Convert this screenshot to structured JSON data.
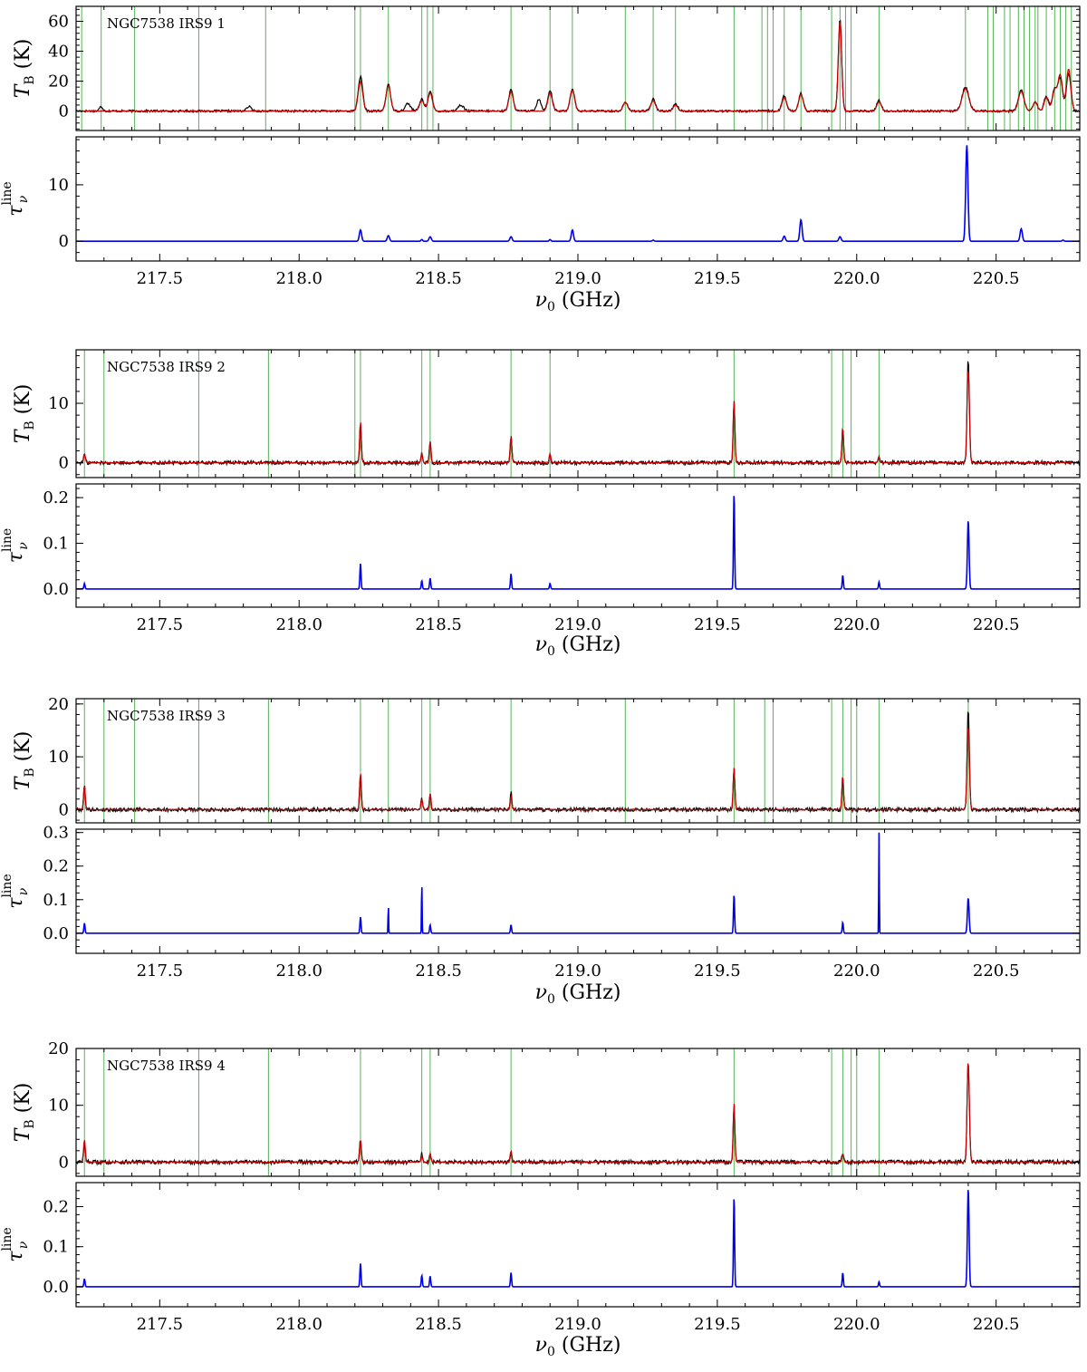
{
  "figure": {
    "xlabel_symbol": "ν",
    "xlabel_sub": "0",
    "xlabel_unit": "(GHz)",
    "xlim": [
      217.2,
      220.8
    ],
    "xticks": [
      217.5,
      218.0,
      218.5,
      219.0,
      219.5,
      220.0,
      220.5
    ],
    "xtick_labels": [
      "217.5",
      "218.0",
      "218.5",
      "219.0",
      "219.5",
      "220.0",
      "220.5"
    ],
    "top_ylabel": {
      "symbol": "T",
      "sub": "B",
      "unit": "(K)"
    },
    "bottom_ylabel": {
      "symbol": "τ",
      "sub": "ν",
      "sup": "line"
    },
    "colors": {
      "observed": "#000000",
      "model": "#cc0000",
      "tau": "#0000ee",
      "marker": "#2ca02c"
    }
  },
  "chart_data": [
    {
      "type": "line",
      "name_label": "NGC7538 IRS9 1",
      "top_ylim": [
        -13,
        70
      ],
      "top_yticks": [
        0,
        20,
        40,
        60
      ],
      "top_ytick_labels": [
        "0",
        "20",
        "40",
        "60"
      ],
      "bottom_ylim": [
        -3.5,
        18.5
      ],
      "bottom_yticks": [
        0,
        10
      ],
      "bottom_ytick_labels": [
        "0",
        "10"
      ],
      "markers": [
        217.22,
        217.29,
        217.41,
        217.64,
        217.88,
        218.2,
        218.22,
        218.32,
        218.44,
        218.46,
        218.48,
        218.76,
        218.9,
        218.98,
        219.17,
        219.27,
        219.35,
        219.56,
        219.66,
        219.68,
        219.7,
        219.74,
        219.8,
        219.91,
        219.94,
        219.96,
        219.98,
        220.08,
        220.39,
        220.47,
        220.49,
        220.53,
        220.55,
        220.58,
        220.6,
        220.62,
        220.64,
        220.65,
        220.68,
        220.71,
        220.73,
        220.75,
        220.77
      ],
      "obs_peaks": [
        [
          217.29,
          3,
          0.006
        ],
        [
          217.82,
          3,
          0.008
        ],
        [
          218.22,
          23,
          0.008
        ],
        [
          218.32,
          18,
          0.008
        ],
        [
          218.39,
          5,
          0.01
        ],
        [
          218.44,
          8,
          0.008
        ],
        [
          218.47,
          13,
          0.008
        ],
        [
          218.58,
          4,
          0.01
        ],
        [
          218.76,
          14,
          0.008
        ],
        [
          218.86,
          8,
          0.008
        ],
        [
          218.9,
          14,
          0.008
        ],
        [
          218.98,
          15,
          0.008
        ],
        [
          219.17,
          6,
          0.008
        ],
        [
          219.27,
          8,
          0.008
        ],
        [
          219.35,
          5,
          0.008
        ],
        [
          219.74,
          10,
          0.008
        ],
        [
          219.8,
          12,
          0.008
        ],
        [
          219.94,
          62,
          0.006
        ],
        [
          220.08,
          7,
          0.008
        ],
        [
          220.39,
          16,
          0.012
        ],
        [
          220.59,
          14,
          0.01
        ],
        [
          220.64,
          6,
          0.008
        ],
        [
          220.68,
          10,
          0.008
        ],
        [
          220.71,
          15,
          0.008
        ],
        [
          220.73,
          22,
          0.008
        ],
        [
          220.76,
          25,
          0.008
        ]
      ],
      "model_peaks": [
        [
          218.22,
          20,
          0.008
        ],
        [
          218.32,
          17,
          0.008
        ],
        [
          218.44,
          7,
          0.008
        ],
        [
          218.47,
          12,
          0.008
        ],
        [
          218.76,
          13,
          0.008
        ],
        [
          218.9,
          12,
          0.008
        ],
        [
          218.98,
          14,
          0.008
        ],
        [
          219.17,
          6,
          0.008
        ],
        [
          219.27,
          7,
          0.008
        ],
        [
          219.35,
          4,
          0.008
        ],
        [
          219.74,
          9,
          0.008
        ],
        [
          219.8,
          11,
          0.008
        ],
        [
          219.94,
          60,
          0.006
        ],
        [
          220.08,
          6,
          0.008
        ],
        [
          220.39,
          15,
          0.012
        ],
        [
          220.59,
          13,
          0.01
        ],
        [
          220.64,
          6,
          0.008
        ],
        [
          220.68,
          9,
          0.008
        ],
        [
          220.71,
          14,
          0.008
        ],
        [
          220.73,
          24,
          0.008
        ],
        [
          220.76,
          28,
          0.008
        ]
      ],
      "noise": 0.7,
      "tau_peaks": [
        [
          218.22,
          2.0,
          0.004
        ],
        [
          218.32,
          1.0,
          0.004
        ],
        [
          218.44,
          0.3,
          0.003
        ],
        [
          218.47,
          0.8,
          0.004
        ],
        [
          218.76,
          0.8,
          0.004
        ],
        [
          218.9,
          0.3,
          0.003
        ],
        [
          218.98,
          2.0,
          0.004
        ],
        [
          219.27,
          0.2,
          0.003
        ],
        [
          219.74,
          0.9,
          0.004
        ],
        [
          219.8,
          3.8,
          0.004
        ],
        [
          219.94,
          0.8,
          0.004
        ],
        [
          220.395,
          17.0,
          0.004
        ],
        [
          220.59,
          2.2,
          0.004
        ],
        [
          220.74,
          0.2,
          0.003
        ]
      ]
    },
    {
      "type": "line",
      "name_label": "NGC7538 IRS9 2",
      "top_ylim": [
        -2.5,
        19
      ],
      "top_yticks": [
        0,
        10
      ],
      "top_ytick_labels": [
        "0",
        "10"
      ],
      "bottom_ylim": [
        -0.04,
        0.23
      ],
      "bottom_yticks": [
        0.0,
        0.1,
        0.2
      ],
      "bottom_ytick_labels": [
        "0.0",
        "0.1",
        "0.2"
      ],
      "markers": [
        217.23,
        217.3,
        217.64,
        217.89,
        218.2,
        218.22,
        218.44,
        218.47,
        218.76,
        218.9,
        219.56,
        219.91,
        219.95,
        219.98,
        220.08
      ],
      "obs_peaks": [
        [
          217.23,
          1.5,
          0.003
        ],
        [
          218.22,
          6.5,
          0.003
        ],
        [
          218.44,
          1.5,
          0.003
        ],
        [
          218.47,
          3.5,
          0.003
        ],
        [
          218.76,
          4.5,
          0.003
        ],
        [
          218.9,
          1.5,
          0.003
        ],
        [
          219.56,
          10.5,
          0.003
        ],
        [
          219.95,
          6.0,
          0.003
        ],
        [
          220.08,
          1.0,
          0.003
        ],
        [
          220.4,
          17.5,
          0.004
        ]
      ],
      "model_peaks": [
        [
          217.23,
          1.5,
          0.003
        ],
        [
          218.22,
          7.0,
          0.003
        ],
        [
          218.44,
          1.5,
          0.003
        ],
        [
          218.47,
          3.5,
          0.003
        ],
        [
          218.76,
          4.5,
          0.003
        ],
        [
          218.9,
          1.5,
          0.003
        ],
        [
          219.56,
          10.5,
          0.003
        ],
        [
          219.95,
          6.0,
          0.003
        ],
        [
          220.08,
          1.0,
          0.003
        ],
        [
          220.4,
          16.0,
          0.004
        ]
      ],
      "noise": 0.3,
      "tau_peaks": [
        [
          217.23,
          0.012,
          0.002
        ],
        [
          218.22,
          0.055,
          0.002
        ],
        [
          218.44,
          0.018,
          0.002
        ],
        [
          218.47,
          0.024,
          0.002
        ],
        [
          218.76,
          0.033,
          0.002
        ],
        [
          218.9,
          0.012,
          0.002
        ],
        [
          219.56,
          0.21,
          0.002
        ],
        [
          219.95,
          0.03,
          0.002
        ],
        [
          220.08,
          0.015,
          0.002
        ],
        [
          220.4,
          0.15,
          0.003
        ]
      ]
    },
    {
      "type": "line",
      "name_label": "NGC7538 IRS9 3",
      "top_ylim": [
        -2.5,
        21
      ],
      "top_yticks": [
        0,
        10,
        20
      ],
      "top_ytick_labels": [
        "0",
        "10",
        "20"
      ],
      "bottom_ylim": [
        -0.06,
        0.31
      ],
      "bottom_yticks": [
        0.0,
        0.1,
        0.2,
        0.3
      ],
      "bottom_ytick_labels": [
        "0.0",
        "0.1",
        "0.2",
        "0.3"
      ],
      "markers": [
        217.23,
        217.3,
        217.41,
        217.64,
        217.89,
        218.22,
        218.32,
        218.44,
        218.47,
        218.76,
        219.17,
        219.56,
        219.67,
        219.7,
        219.91,
        219.95,
        219.98,
        220.0,
        220.08,
        220.4
      ],
      "obs_peaks": [
        [
          217.23,
          4.5,
          0.003
        ],
        [
          218.22,
          6.5,
          0.003
        ],
        [
          218.44,
          2.0,
          0.003
        ],
        [
          218.47,
          3.0,
          0.003
        ],
        [
          218.76,
          3.5,
          0.003
        ],
        [
          219.56,
          8.0,
          0.003
        ],
        [
          219.95,
          6.0,
          0.003
        ],
        [
          220.4,
          19.0,
          0.004
        ]
      ],
      "model_peaks": [
        [
          217.23,
          4.5,
          0.003
        ],
        [
          218.22,
          7.0,
          0.003
        ],
        [
          218.44,
          2.0,
          0.003
        ],
        [
          218.47,
          3.0,
          0.003
        ],
        [
          218.76,
          2.5,
          0.003
        ],
        [
          219.56,
          8.0,
          0.003
        ],
        [
          219.95,
          6.5,
          0.003
        ],
        [
          220.4,
          16.0,
          0.004
        ]
      ],
      "noise": 0.35,
      "tau_peaks": [
        [
          217.23,
          0.03,
          0.002
        ],
        [
          218.22,
          0.048,
          0.002
        ],
        [
          218.32,
          0.085,
          0.001
        ],
        [
          218.44,
          0.155,
          0.001
        ],
        [
          218.47,
          0.025,
          0.002
        ],
        [
          218.76,
          0.025,
          0.002
        ],
        [
          219.56,
          0.115,
          0.002
        ],
        [
          219.95,
          0.032,
          0.002
        ],
        [
          220.08,
          0.3,
          0.001
        ],
        [
          220.4,
          0.105,
          0.003
        ]
      ]
    },
    {
      "type": "line",
      "name_label": "NGC7538 IRS9 4",
      "top_ylim": [
        -2.5,
        20
      ],
      "top_yticks": [
        0,
        10,
        20
      ],
      "top_ytick_labels": [
        "0",
        "10",
        "20"
      ],
      "bottom_ylim": [
        -0.05,
        0.26
      ],
      "bottom_yticks": [
        0.0,
        0.1,
        0.2
      ],
      "bottom_ytick_labels": [
        "0.0",
        "0.1",
        "0.2"
      ],
      "markers": [
        217.23,
        217.3,
        217.64,
        217.89,
        218.22,
        218.44,
        218.47,
        218.76,
        219.56,
        219.91,
        219.95,
        219.98,
        220.0,
        220.08
      ],
      "obs_peaks": [
        [
          217.23,
          3.5,
          0.003
        ],
        [
          218.22,
          4.0,
          0.003
        ],
        [
          218.44,
          1.5,
          0.003
        ],
        [
          218.47,
          1.5,
          0.003
        ],
        [
          218.76,
          1.5,
          0.003
        ],
        [
          219.56,
          10.0,
          0.003
        ],
        [
          219.95,
          1.5,
          0.003
        ],
        [
          220.4,
          17.5,
          0.004
        ]
      ],
      "model_peaks": [
        [
          217.23,
          4.0,
          0.003
        ],
        [
          218.22,
          4.0,
          0.003
        ],
        [
          218.44,
          1.0,
          0.003
        ],
        [
          218.47,
          1.5,
          0.003
        ],
        [
          218.76,
          2.0,
          0.003
        ],
        [
          219.56,
          10.5,
          0.003
        ],
        [
          219.95,
          1.5,
          0.003
        ],
        [
          220.4,
          18.0,
          0.004
        ]
      ],
      "noise": 0.35,
      "tau_peaks": [
        [
          217.23,
          0.02,
          0.002
        ],
        [
          218.22,
          0.058,
          0.002
        ],
        [
          218.44,
          0.028,
          0.002
        ],
        [
          218.47,
          0.027,
          0.002
        ],
        [
          218.76,
          0.035,
          0.002
        ],
        [
          219.56,
          0.225,
          0.002
        ],
        [
          219.95,
          0.035,
          0.002
        ],
        [
          220.08,
          0.012,
          0.002
        ],
        [
          220.4,
          0.245,
          0.003
        ]
      ]
    }
  ]
}
